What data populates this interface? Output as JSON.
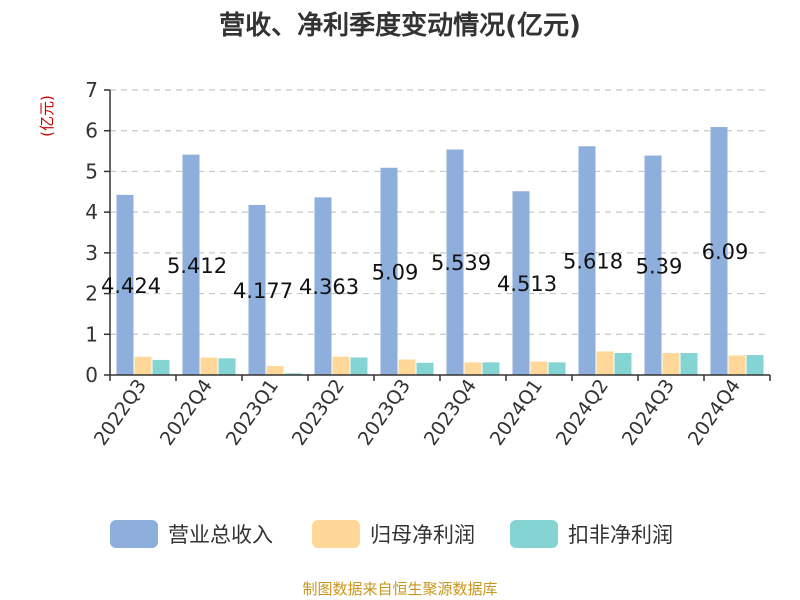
{
  "chart_data": {
    "type": "bar",
    "title": "营收、净利季度变动情况(亿元)",
    "ylabel": "(亿元)",
    "ylim": [
      0,
      7
    ],
    "yticks": [
      "0",
      "1",
      "2",
      "3",
      "4",
      "5",
      "6",
      "7"
    ],
    "grid": true,
    "legend_position": "bottom",
    "categories": [
      "2022Q3",
      "2022Q4",
      "2023Q1",
      "2023Q2",
      "2023Q3",
      "2023Q4",
      "2024Q1",
      "2024Q2",
      "2024Q3",
      "2024Q4"
    ],
    "series": [
      {
        "name": "营业总收入",
        "color": "#8eaedb",
        "values": [
          4.424,
          5.412,
          4.177,
          4.363,
          5.09,
          5.539,
          4.513,
          5.618,
          5.39,
          6.09
        ],
        "data_labels": [
          "4.424",
          "5.412",
          "4.177",
          "4.363",
          "5.09",
          "5.539",
          "4.513",
          "5.618",
          "5.39",
          "6.09"
        ]
      },
      {
        "name": "归母净利润",
        "color": "#ffd899",
        "values": [
          0.45,
          0.43,
          0.22,
          0.45,
          0.38,
          0.31,
          0.33,
          0.58,
          0.54,
          0.48
        ]
      },
      {
        "name": "扣非净利润",
        "color": "#85d4d4",
        "values": [
          0.37,
          0.41,
          0.04,
          0.43,
          0.3,
          0.31,
          0.31,
          0.54,
          0.54,
          0.49
        ]
      }
    ],
    "source": "制图数据来自恒生聚源数据库"
  }
}
